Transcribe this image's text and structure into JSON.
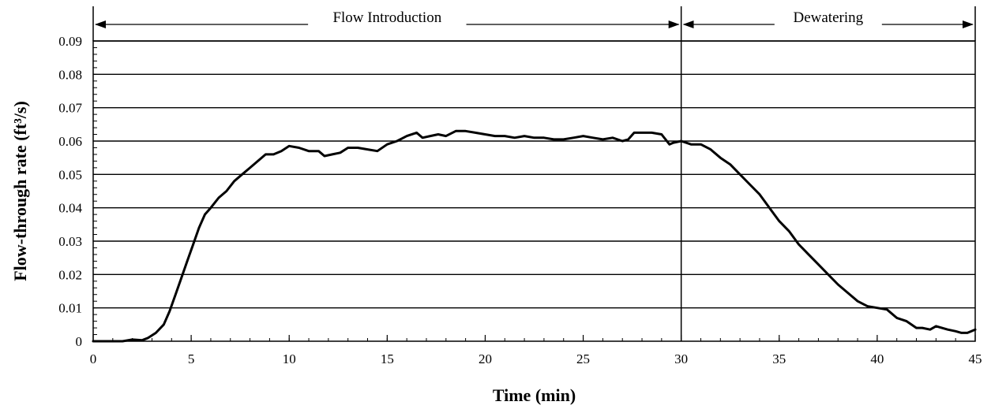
{
  "chart_data": {
    "type": "line",
    "xlabel": "Time (min)",
    "ylabel": "Flow-through rate (ft³/s)",
    "xlim": [
      0,
      45
    ],
    "ylim": [
      0,
      0.09
    ],
    "x_ticks": [
      "0",
      "5",
      "10",
      "15",
      "20",
      "25",
      "30",
      "35",
      "40",
      "45"
    ],
    "y_ticks": [
      "0",
      "0.01",
      "0.02",
      "0.03",
      "0.04",
      "0.05",
      "0.06",
      "0.07",
      "0.08",
      "0.09"
    ],
    "grid": "horizontal",
    "phases": [
      {
        "label": "Flow Introduction",
        "start": 0,
        "end": 30
      },
      {
        "label": "Dewatering",
        "start": 30,
        "end": 45
      }
    ],
    "series": [
      {
        "color": "#000000",
        "x": [
          0,
          1.5,
          2.0,
          2.5,
          2.8,
          3.2,
          3.6,
          3.9,
          4.2,
          4.5,
          4.8,
          5.1,
          5.4,
          5.7,
          6.0,
          6.4,
          6.8,
          7.2,
          7.6,
          8.0,
          8.4,
          8.8,
          9.2,
          9.6,
          10.0,
          10.5,
          11.0,
          11.5,
          11.8,
          12.2,
          12.6,
          13.0,
          13.5,
          14.0,
          14.5,
          15.0,
          15.5,
          16.0,
          16.5,
          16.8,
          17.2,
          17.6,
          18.0,
          18.5,
          19.0,
          19.5,
          20.0,
          20.5,
          21.0,
          21.5,
          22.0,
          22.5,
          23.0,
          23.5,
          24.0,
          24.5,
          25.0,
          25.5,
          26.0,
          26.5,
          27.0,
          27.3,
          27.6,
          28.0,
          28.5,
          29.0,
          29.4,
          29.6,
          30.0,
          30.5,
          31.0,
          31.5,
          32.0,
          32.5,
          33.0,
          33.5,
          34.0,
          34.5,
          35.0,
          35.5,
          36.0,
          36.5,
          37.0,
          37.5,
          38.0,
          38.5,
          39.0,
          39.5,
          40.0,
          40.5,
          41.0,
          41.5,
          42.0,
          42.3,
          42.7,
          43.0,
          43.3,
          43.6,
          44.0,
          44.3,
          44.6,
          45.0
        ],
        "y": [
          0,
          0,
          0.0005,
          0.0003,
          0.001,
          0.0025,
          0.005,
          0.009,
          0.014,
          0.019,
          0.024,
          0.029,
          0.034,
          0.038,
          0.04,
          0.043,
          0.045,
          0.048,
          0.05,
          0.052,
          0.054,
          0.056,
          0.056,
          0.057,
          0.0585,
          0.058,
          0.057,
          0.057,
          0.0555,
          0.056,
          0.0565,
          0.058,
          0.058,
          0.0575,
          0.057,
          0.059,
          0.06,
          0.0615,
          0.0625,
          0.061,
          0.0615,
          0.062,
          0.0615,
          0.063,
          0.063,
          0.0625,
          0.062,
          0.0615,
          0.0615,
          0.061,
          0.0615,
          0.061,
          0.061,
          0.0605,
          0.0605,
          0.061,
          0.0615,
          0.061,
          0.0605,
          0.061,
          0.06,
          0.0605,
          0.0625,
          0.0625,
          0.0625,
          0.062,
          0.059,
          0.0595,
          0.06,
          0.059,
          0.059,
          0.0575,
          0.055,
          0.053,
          0.05,
          0.047,
          0.044,
          0.04,
          0.036,
          0.033,
          0.029,
          0.026,
          0.023,
          0.02,
          0.017,
          0.0145,
          0.012,
          0.0105,
          0.01,
          0.0095,
          0.007,
          0.006,
          0.004,
          0.004,
          0.0035,
          0.0045,
          0.004,
          0.0035,
          0.003,
          0.0025,
          0.0025,
          0.0035
        ]
      }
    ]
  }
}
